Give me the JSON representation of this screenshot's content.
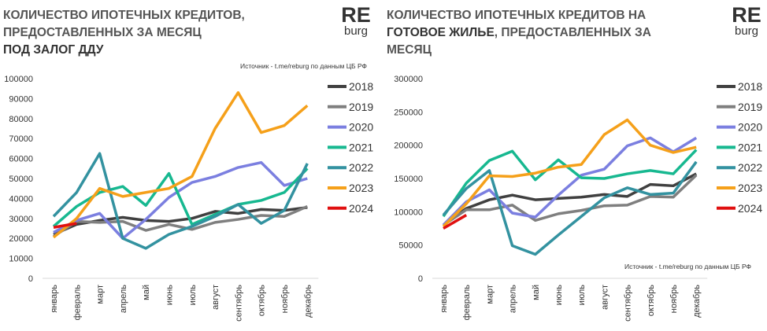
{
  "chart_data": [
    {
      "type": "line",
      "title_lines": [
        [
          {
            "text": "КОЛИЧЕСТВО ИПОТЕЧНЫХ КРЕДИТОВ,",
            "bold": false
          }
        ],
        [
          {
            "text": "ПРЕДОСТАВЛЕННЫХ ЗА МЕСЯЦ",
            "bold": false
          }
        ],
        [
          {
            "text": "ПОД ЗАЛОГ ДДУ",
            "bold": true
          }
        ]
      ],
      "logo": {
        "top": "RE",
        "bottom": "burg",
        "color": "#2aa84a"
      },
      "source": "Источник  - t.me/reburg по данным  ЦБ РФ",
      "categories": [
        "январь",
        "февраль",
        "март",
        "апрель",
        "май",
        "июнь",
        "июль",
        "август",
        "сентябрь",
        "октябрь",
        "ноябрь",
        "декабрь"
      ],
      "ylim": [
        0,
        100000
      ],
      "yticks": [
        0,
        10000,
        20000,
        30000,
        40000,
        50000,
        60000,
        70000,
        80000,
        90000,
        100000
      ],
      "series": [
        {
          "name": "2018",
          "color": "#404040",
          "values": [
            22000,
            27000,
            29000,
            30500,
            29000,
            28500,
            30000,
            33500,
            32500,
            34500,
            34000,
            35500
          ]
        },
        {
          "name": "2019",
          "color": "#7f7f7f",
          "values": [
            21000,
            28500,
            28000,
            28500,
            24000,
            27000,
            24500,
            28000,
            29500,
            31500,
            31000,
            36000
          ]
        },
        {
          "name": "2020",
          "color": "#7b7fe0",
          "values": [
            23000,
            29000,
            32500,
            20000,
            29500,
            40500,
            48000,
            51000,
            55500,
            58000,
            46500,
            50000
          ]
        },
        {
          "name": "2021",
          "color": "#17b890",
          "values": [
            26000,
            36000,
            43000,
            46000,
            36500,
            52500,
            27000,
            32000,
            37000,
            39000,
            43000,
            55000
          ]
        },
        {
          "name": "2022",
          "color": "#3392a0",
          "values": [
            31000,
            43000,
            62500,
            20000,
            15000,
            22000,
            26000,
            31000,
            37000,
            27500,
            34000,
            57500
          ]
        },
        {
          "name": "2023",
          "color": "#f5a01a",
          "values": [
            20500,
            30000,
            45000,
            41000,
            43000,
            45000,
            51000,
            75000,
            93000,
            73000,
            76500,
            86500
          ]
        },
        {
          "name": "2024",
          "color": "#e01010",
          "values": [
            25500,
            27500,
            null,
            null,
            null,
            null,
            null,
            null,
            null,
            null,
            null,
            null
          ]
        }
      ]
    },
    {
      "type": "line",
      "title_lines": [
        [
          {
            "text": "КОЛИЧЕСТВО ИПОТЕЧНЫХ КРЕДИТОВ НА",
            "bold": false
          }
        ],
        [
          {
            "text": "ГОТОВОЕ ЖИЛЬЕ",
            "bold": true
          },
          {
            "text": ", ПРЕДОСТАВЛЕННЫХ ЗА",
            "bold": false
          }
        ],
        [
          {
            "text": "МЕСЯЦ",
            "bold": false
          }
        ]
      ],
      "logo": {
        "top": "RE",
        "bottom": "burg",
        "color": "#2aa84a"
      },
      "source": "Источник  - t.me/reburg по данным  ЦБ РФ",
      "categories": [
        "январь",
        "февраль",
        "март",
        "апрель",
        "май",
        "июнь",
        "июль",
        "август",
        "сентябрь",
        "октябрь",
        "ноябрь",
        "декабрь"
      ],
      "ylim": [
        0,
        300000
      ],
      "yticks": [
        0,
        50000,
        100000,
        150000,
        200000,
        250000,
        300000
      ],
      "series": [
        {
          "name": "2018",
          "color": "#404040",
          "values": [
            80000,
            105000,
            118000,
            125000,
            118000,
            120000,
            122000,
            126000,
            123000,
            141000,
            139000,
            157000
          ]
        },
        {
          "name": "2019",
          "color": "#7f7f7f",
          "values": [
            80000,
            103000,
            103000,
            110000,
            87000,
            97000,
            102000,
            109000,
            110000,
            123000,
            122000,
            155000
          ]
        },
        {
          "name": "2020",
          "color": "#7b7fe0",
          "values": [
            80000,
            115000,
            133000,
            98000,
            92000,
            125000,
            155000,
            164000,
            199000,
            211000,
            190000,
            211000
          ]
        },
        {
          "name": "2021",
          "color": "#17b890",
          "values": [
            93000,
            143000,
            177000,
            191000,
            148000,
            178000,
            151000,
            150000,
            157000,
            162000,
            157000,
            193000
          ]
        },
        {
          "name": "2022",
          "color": "#3392a0",
          "values": [
            95000,
            135000,
            162000,
            49000,
            36000,
            65000,
            93000,
            121000,
            136000,
            126000,
            128000,
            175000
          ]
        },
        {
          "name": "2023",
          "color": "#f5a01a",
          "values": [
            78000,
            112000,
            154000,
            153000,
            158000,
            167000,
            171000,
            216000,
            238000,
            200000,
            189000,
            197000
          ]
        },
        {
          "name": "2024",
          "color": "#e01010",
          "values": [
            75000,
            95000,
            null,
            null,
            null,
            null,
            null,
            null,
            null,
            null,
            null,
            null
          ]
        }
      ]
    }
  ]
}
